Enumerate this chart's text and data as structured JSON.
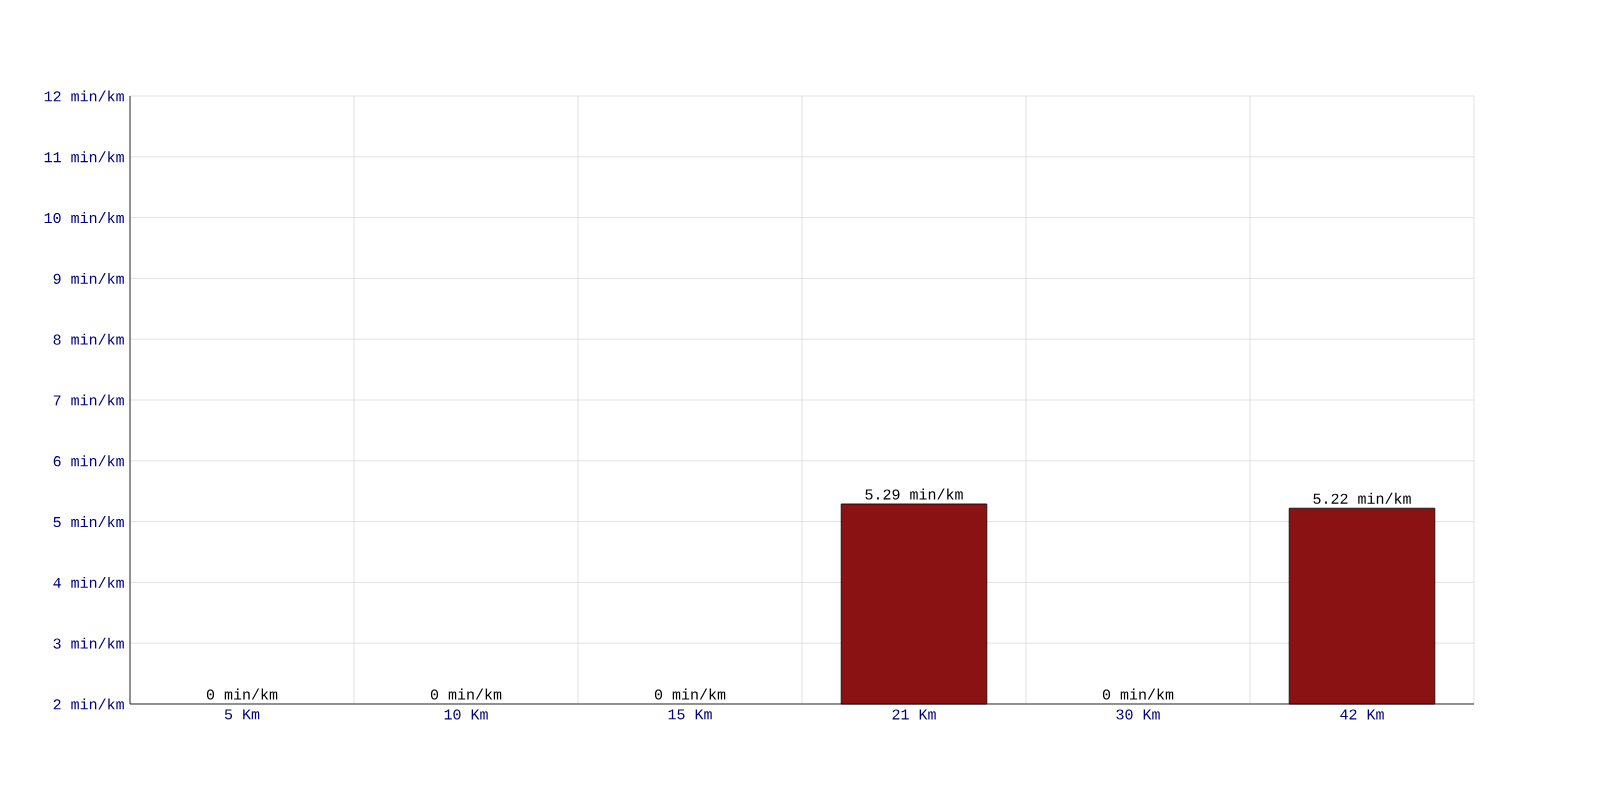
{
  "chart_data": {
    "type": "bar",
    "categories": [
      "5 Km",
      "10 Km",
      "15 Km",
      "21 Km",
      "30 Km",
      "42 Km"
    ],
    "values": [
      null,
      null,
      null,
      5.29,
      null,
      5.22
    ],
    "value_labels": [
      "0 min/km",
      "0 min/km",
      "0 min/km",
      "5.29 min/km",
      "0 min/km",
      "5.22 min/km"
    ],
    "color": "#8b1212",
    "ylim": [
      2,
      12
    ],
    "yticks": [
      {
        "value": 2,
        "label": "2 min/km"
      },
      {
        "value": 3,
        "label": "3 min/km"
      },
      {
        "value": 4,
        "label": "4 min/km"
      },
      {
        "value": 5,
        "label": "5 min/km"
      },
      {
        "value": 6,
        "label": "6 min/km"
      },
      {
        "value": 7,
        "label": "7 min/km"
      },
      {
        "value": 8,
        "label": "8 min/km"
      },
      {
        "value": 9,
        "label": "9 min/km"
      },
      {
        "value": 10,
        "label": "10 min/km"
      },
      {
        "value": 11,
        "label": "11 min/km"
      },
      {
        "value": 12,
        "label": "12 min/km"
      }
    ],
    "grid": true
  }
}
